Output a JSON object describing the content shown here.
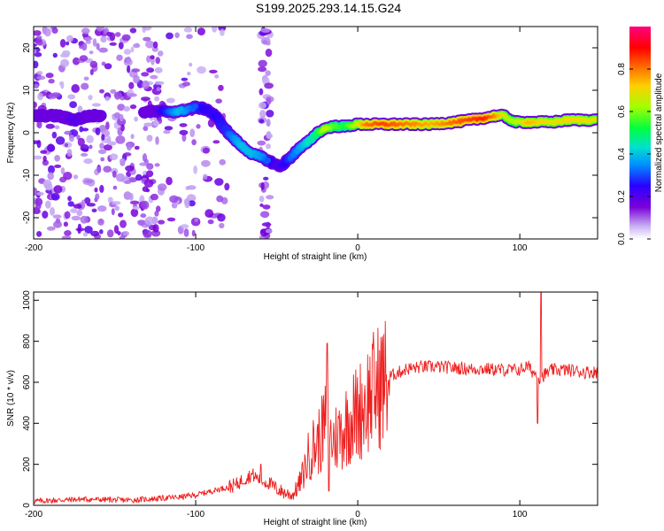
{
  "title": "S199.2025.293.14.15.G24",
  "chart_data": [
    {
      "type": "heatmap",
      "title": "S199.2025.293.14.15.G24",
      "xlabel": "Height of straight line (km)",
      "ylabel": "Frequency (Hz)",
      "xlim": [
        -200,
        148
      ],
      "ylim": [
        -25,
        25
      ],
      "xticks": [
        -200,
        -100,
        0,
        100
      ],
      "yticks": [
        -20,
        -10,
        0,
        10,
        20
      ],
      "colorbar": {
        "label": "Normalized spectral amplitude",
        "range": [
          0.0,
          1.0
        ],
        "ticks": [
          0.0,
          0.2,
          0.4,
          0.6,
          0.8
        ],
        "colors": [
          "#ffffff",
          "#b08cf0",
          "#7a00d8",
          "#2000ff",
          "#00c8ff",
          "#00ff60",
          "#a0ff00",
          "#ffd000",
          "#ff7000",
          "#ff0000",
          "#ff0080"
        ]
      },
      "noise_region_x": [
        -200,
        -120
      ],
      "ridge": {
        "x": [
          -200,
          -185,
          -175,
          -165,
          -160,
          -130,
          -120,
          -110,
          -100,
          -93,
          -88,
          -80,
          -72,
          -65,
          -58,
          -53,
          -48,
          -42,
          -37,
          -30,
          -25,
          -20,
          -15,
          -8,
          0,
          5,
          15,
          30,
          45,
          60,
          70,
          78,
          85,
          90,
          97,
          105,
          112,
          120,
          130,
          148
        ],
        "freq": [
          4,
          4,
          3,
          4,
          4,
          5,
          5,
          5,
          6,
          5.5,
          4,
          0,
          -3,
          -5,
          -6,
          -7,
          -8,
          -6,
          -4,
          -2,
          0,
          1,
          1.5,
          1.5,
          2,
          2,
          2,
          2,
          2,
          2.5,
          3,
          3.5,
          4,
          4,
          2.5,
          2.5,
          2.5,
          2.5,
          3,
          3
        ],
        "amplitude": [
          0.05,
          0.15,
          0.25,
          0.2,
          0.1,
          0.05,
          0.3,
          0.45,
          0.35,
          0.3,
          0.3,
          0.35,
          0.45,
          0.45,
          0.4,
          0.3,
          0.25,
          0.35,
          0.4,
          0.5,
          0.55,
          0.7,
          0.6,
          0.55,
          0.7,
          0.8,
          0.85,
          0.8,
          0.75,
          0.82,
          0.85,
          0.88,
          0.78,
          0.7,
          0.65,
          0.75,
          0.72,
          0.7,
          0.72,
          0.7
        ]
      }
    },
    {
      "type": "line",
      "xlabel": "Height of straight line (km)",
      "ylabel": "SNR (10 * v/v)",
      "xlim": [
        -200,
        148
      ],
      "ylim": [
        0,
        1040
      ],
      "xticks": [
        -200,
        -100,
        0,
        100
      ],
      "yticks": [
        0,
        200,
        400,
        600,
        800,
        1000
      ],
      "color": "#ee2020",
      "series": [
        {
          "name": "SNR",
          "x": [
            -200,
            -170,
            -140,
            -110,
            -100,
            -90,
            -80,
            -75,
            -70,
            -65,
            -60,
            -55,
            -50,
            -45,
            -40,
            -35,
            -30,
            -28,
            -25,
            -22,
            -20,
            -18,
            -15,
            -10,
            -5,
            0,
            5,
            10,
            20,
            30,
            40,
            50,
            60,
            70,
            80,
            90,
            100,
            105,
            108,
            110,
            112,
            120,
            130,
            140,
            148
          ],
          "y": [
            20,
            30,
            25,
            40,
            50,
            70,
            90,
            100,
            130,
            150,
            120,
            110,
            80,
            60,
            50,
            120,
            250,
            280,
            300,
            350,
            400,
            330,
            320,
            360,
            420,
            450,
            510,
            560,
            630,
            665,
            675,
            675,
            670,
            665,
            665,
            660,
            660,
            680,
            650,
            640,
            620,
            660,
            660,
            650,
            650
          ]
        }
      ],
      "spikes": [
        {
          "x": -60,
          "y": 200
        },
        {
          "x": -19,
          "y": 790
        },
        {
          "x": -18,
          "y": 70
        },
        {
          "x": 111,
          "y": 400
        },
        {
          "x": 113,
          "y": 1040
        }
      ]
    }
  ]
}
